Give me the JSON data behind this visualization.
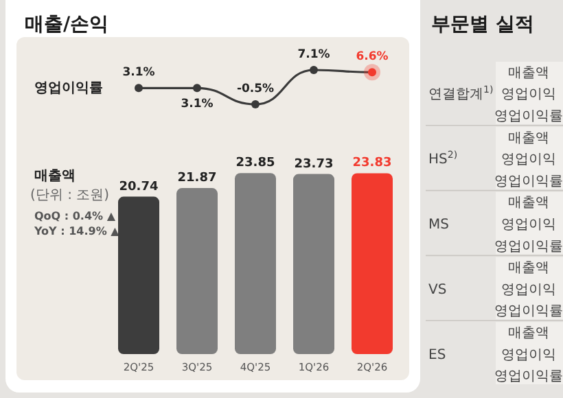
{
  "chart_data": [
    {
      "type": "line",
      "title": "매출/손익",
      "ylabel": "영업이익률",
      "categories": [
        null,
        null,
        null,
        null,
        null
      ],
      "marker": "circle",
      "series": [
        {
          "color": "#3a3a3a",
          "colors": [
            "#3a3a3a",
            "#3a3a3a",
            "#3a3a3a",
            "#3a3a3a",
            "#f23a2e"
          ],
          "values": [
            3.1,
            3.1,
            -0.5,
            7.1,
            6.6
          ],
          "value_labels": [
            "3.1%",
            "3.1%",
            "-0.5%",
            "7.1%",
            "6.6%"
          ]
        }
      ]
    },
    {
      "type": "bar",
      "ylabel": "매출액",
      "subtitle": "(단위 : 조원)",
      "annotations": [
        "QoQ :  0.4% ▲",
        "YoY : 14.9% ▲"
      ],
      "categories": [
        "2Q'25",
        "3Q'25",
        "4Q'25",
        "1Q'26",
        "2Q'26"
      ],
      "values": [
        20.74,
        21.87,
        23.85,
        23.73,
        23.83
      ],
      "colors": [
        "#3d3d3d",
        "#7f7f7f",
        "#7f7f7f",
        "#7f7f7f",
        "#f23a2e"
      ],
      "data_labels": true
    },
    {
      "type": "other",
      "title": "부문별 실적",
      "annotations": [
        "연결합계$^{1)}$",
        "매출액",
        "영업이익",
        "영업이익률",
        "HS$^{2)}$",
        "매출액",
        "영업이익",
        "영업이익률",
        "MS",
        "매출액",
        "영업이익",
        "영업이익률",
        "VS",
        "매출액",
        "영업이익",
        "영업이익률",
        "ES",
        "매출액",
        "영업이익",
        "영업이익률"
      ]
    }
  ]
}
